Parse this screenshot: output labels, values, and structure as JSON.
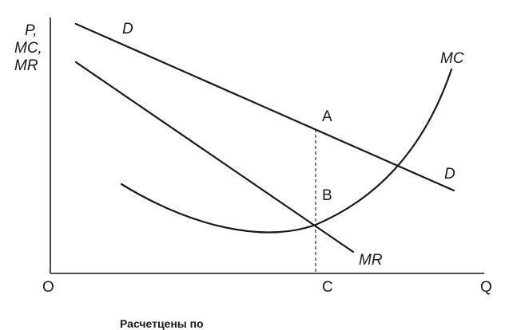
{
  "axes": {
    "y_label_lines": [
      "P,",
      "MC,",
      "MR"
    ],
    "origin": "O",
    "x_label": "Q",
    "x_point": "C"
  },
  "curves": {
    "demand_left": "D",
    "demand_right": "D",
    "marginal_revenue": "MR",
    "marginal_cost": "MC"
  },
  "points": {
    "a": "A",
    "b": "B"
  },
  "caption": "Расчетцены по"
}
